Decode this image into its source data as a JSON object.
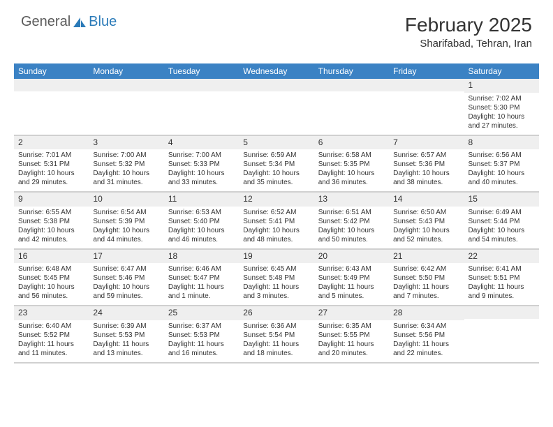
{
  "logo": {
    "general": "General",
    "blue": "Blue",
    "icon_fill": "#2a7ab8"
  },
  "title": "February 2025",
  "location": "Sharifabad, Tehran, Iran",
  "colors": {
    "header_bg": "#3b82c4",
    "header_text": "#ffffff",
    "daybar_bg": "#efefef",
    "text": "#333333",
    "border": "#d0d0d0"
  },
  "weekdays": [
    "Sunday",
    "Monday",
    "Tuesday",
    "Wednesday",
    "Thursday",
    "Friday",
    "Saturday"
  ],
  "weeks": [
    [
      {
        "day": "",
        "sunrise": "",
        "sunset": "",
        "daylight": ""
      },
      {
        "day": "",
        "sunrise": "",
        "sunset": "",
        "daylight": ""
      },
      {
        "day": "",
        "sunrise": "",
        "sunset": "",
        "daylight": ""
      },
      {
        "day": "",
        "sunrise": "",
        "sunset": "",
        "daylight": ""
      },
      {
        "day": "",
        "sunrise": "",
        "sunset": "",
        "daylight": ""
      },
      {
        "day": "",
        "sunrise": "",
        "sunset": "",
        "daylight": ""
      },
      {
        "day": "1",
        "sunrise": "Sunrise: 7:02 AM",
        "sunset": "Sunset: 5:30 PM",
        "daylight": "Daylight: 10 hours and 27 minutes."
      }
    ],
    [
      {
        "day": "2",
        "sunrise": "Sunrise: 7:01 AM",
        "sunset": "Sunset: 5:31 PM",
        "daylight": "Daylight: 10 hours and 29 minutes."
      },
      {
        "day": "3",
        "sunrise": "Sunrise: 7:00 AM",
        "sunset": "Sunset: 5:32 PM",
        "daylight": "Daylight: 10 hours and 31 minutes."
      },
      {
        "day": "4",
        "sunrise": "Sunrise: 7:00 AM",
        "sunset": "Sunset: 5:33 PM",
        "daylight": "Daylight: 10 hours and 33 minutes."
      },
      {
        "day": "5",
        "sunrise": "Sunrise: 6:59 AM",
        "sunset": "Sunset: 5:34 PM",
        "daylight": "Daylight: 10 hours and 35 minutes."
      },
      {
        "day": "6",
        "sunrise": "Sunrise: 6:58 AM",
        "sunset": "Sunset: 5:35 PM",
        "daylight": "Daylight: 10 hours and 36 minutes."
      },
      {
        "day": "7",
        "sunrise": "Sunrise: 6:57 AM",
        "sunset": "Sunset: 5:36 PM",
        "daylight": "Daylight: 10 hours and 38 minutes."
      },
      {
        "day": "8",
        "sunrise": "Sunrise: 6:56 AM",
        "sunset": "Sunset: 5:37 PM",
        "daylight": "Daylight: 10 hours and 40 minutes."
      }
    ],
    [
      {
        "day": "9",
        "sunrise": "Sunrise: 6:55 AM",
        "sunset": "Sunset: 5:38 PM",
        "daylight": "Daylight: 10 hours and 42 minutes."
      },
      {
        "day": "10",
        "sunrise": "Sunrise: 6:54 AM",
        "sunset": "Sunset: 5:39 PM",
        "daylight": "Daylight: 10 hours and 44 minutes."
      },
      {
        "day": "11",
        "sunrise": "Sunrise: 6:53 AM",
        "sunset": "Sunset: 5:40 PM",
        "daylight": "Daylight: 10 hours and 46 minutes."
      },
      {
        "day": "12",
        "sunrise": "Sunrise: 6:52 AM",
        "sunset": "Sunset: 5:41 PM",
        "daylight": "Daylight: 10 hours and 48 minutes."
      },
      {
        "day": "13",
        "sunrise": "Sunrise: 6:51 AM",
        "sunset": "Sunset: 5:42 PM",
        "daylight": "Daylight: 10 hours and 50 minutes."
      },
      {
        "day": "14",
        "sunrise": "Sunrise: 6:50 AM",
        "sunset": "Sunset: 5:43 PM",
        "daylight": "Daylight: 10 hours and 52 minutes."
      },
      {
        "day": "15",
        "sunrise": "Sunrise: 6:49 AM",
        "sunset": "Sunset: 5:44 PM",
        "daylight": "Daylight: 10 hours and 54 minutes."
      }
    ],
    [
      {
        "day": "16",
        "sunrise": "Sunrise: 6:48 AM",
        "sunset": "Sunset: 5:45 PM",
        "daylight": "Daylight: 10 hours and 56 minutes."
      },
      {
        "day": "17",
        "sunrise": "Sunrise: 6:47 AM",
        "sunset": "Sunset: 5:46 PM",
        "daylight": "Daylight: 10 hours and 59 minutes."
      },
      {
        "day": "18",
        "sunrise": "Sunrise: 6:46 AM",
        "sunset": "Sunset: 5:47 PM",
        "daylight": "Daylight: 11 hours and 1 minute."
      },
      {
        "day": "19",
        "sunrise": "Sunrise: 6:45 AM",
        "sunset": "Sunset: 5:48 PM",
        "daylight": "Daylight: 11 hours and 3 minutes."
      },
      {
        "day": "20",
        "sunrise": "Sunrise: 6:43 AM",
        "sunset": "Sunset: 5:49 PM",
        "daylight": "Daylight: 11 hours and 5 minutes."
      },
      {
        "day": "21",
        "sunrise": "Sunrise: 6:42 AM",
        "sunset": "Sunset: 5:50 PM",
        "daylight": "Daylight: 11 hours and 7 minutes."
      },
      {
        "day": "22",
        "sunrise": "Sunrise: 6:41 AM",
        "sunset": "Sunset: 5:51 PM",
        "daylight": "Daylight: 11 hours and 9 minutes."
      }
    ],
    [
      {
        "day": "23",
        "sunrise": "Sunrise: 6:40 AM",
        "sunset": "Sunset: 5:52 PM",
        "daylight": "Daylight: 11 hours and 11 minutes."
      },
      {
        "day": "24",
        "sunrise": "Sunrise: 6:39 AM",
        "sunset": "Sunset: 5:53 PM",
        "daylight": "Daylight: 11 hours and 13 minutes."
      },
      {
        "day": "25",
        "sunrise": "Sunrise: 6:37 AM",
        "sunset": "Sunset: 5:53 PM",
        "daylight": "Daylight: 11 hours and 16 minutes."
      },
      {
        "day": "26",
        "sunrise": "Sunrise: 6:36 AM",
        "sunset": "Sunset: 5:54 PM",
        "daylight": "Daylight: 11 hours and 18 minutes."
      },
      {
        "day": "27",
        "sunrise": "Sunrise: 6:35 AM",
        "sunset": "Sunset: 5:55 PM",
        "daylight": "Daylight: 11 hours and 20 minutes."
      },
      {
        "day": "28",
        "sunrise": "Sunrise: 6:34 AM",
        "sunset": "Sunset: 5:56 PM",
        "daylight": "Daylight: 11 hours and 22 minutes."
      },
      {
        "day": "",
        "sunrise": "",
        "sunset": "",
        "daylight": ""
      }
    ]
  ]
}
